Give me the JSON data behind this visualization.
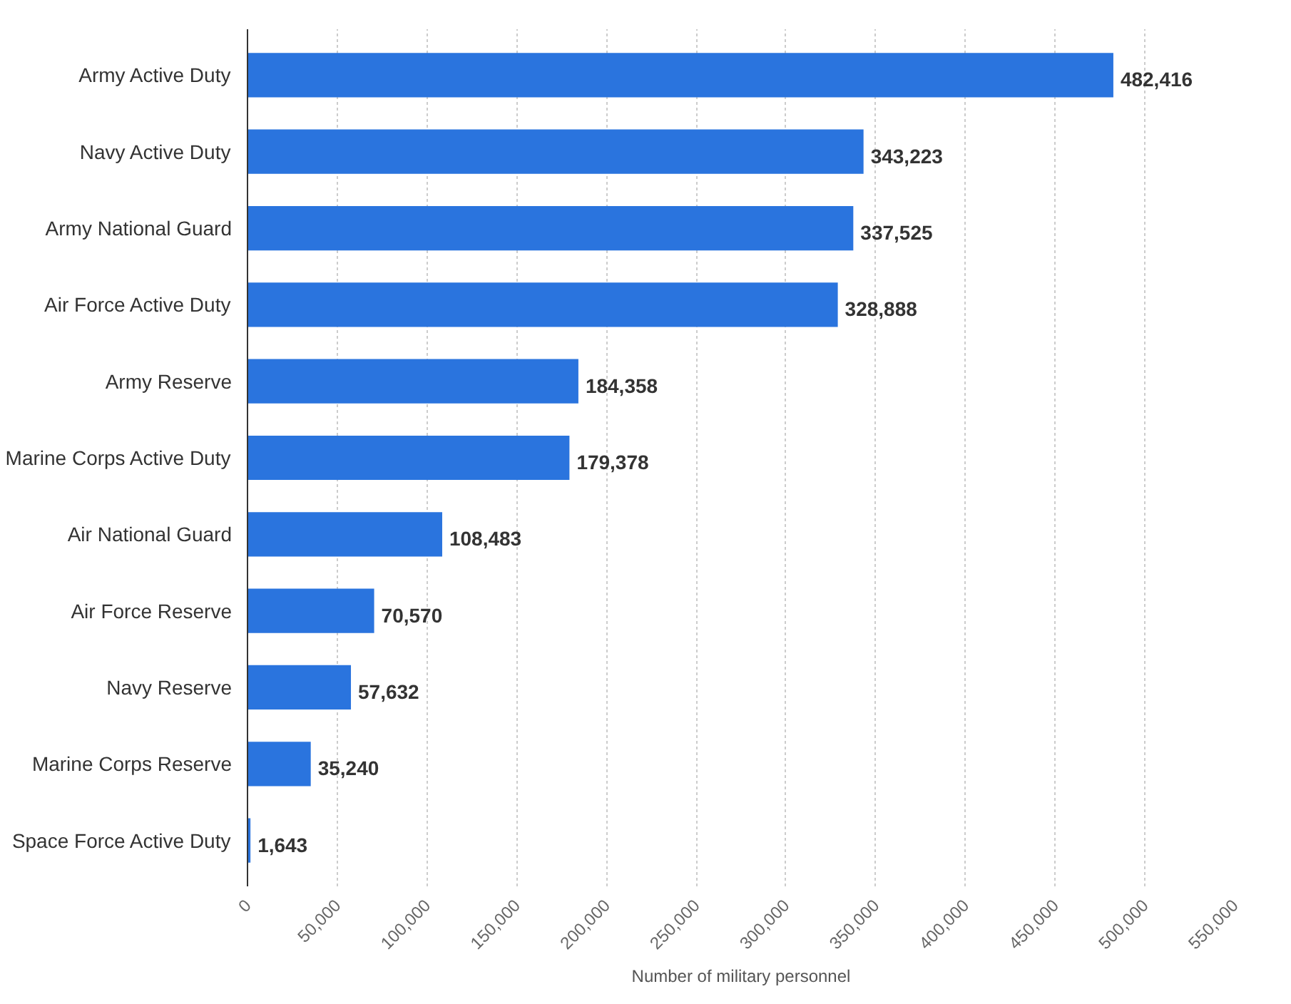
{
  "chart_data": {
    "type": "bar",
    "orientation": "horizontal",
    "xlabel": "Number of military personnel",
    "categories": [
      "Army Active Duty",
      "Navy Active Duty",
      "Army National Guard",
      "Air Force Active Duty",
      "Army Reserve",
      "Marine Corps Active Duty",
      "Air National Guard",
      "Air Force Reserve",
      "Navy Reserve",
      "Marine Corps Reserve",
      "Space Force Active Duty"
    ],
    "values": [
      482416,
      343223,
      337525,
      328888,
      184358,
      179378,
      108483,
      70570,
      57632,
      35240,
      1643
    ],
    "value_labels": [
      "482,416",
      "343,223",
      "337,525",
      "328,888",
      "184,358",
      "179,378",
      "108,483",
      "70,570",
      "57,632",
      "35,240",
      "1,643"
    ],
    "color": "#2a74de",
    "grid": "x",
    "xlim": [
      0,
      550000
    ],
    "xticks": [
      0,
      {
        "value": 50000,
        "label": "50,000"
      },
      {
        "value": 100000,
        "label": "100,000"
      },
      {
        "value": 150000,
        "label": "150,000"
      },
      {
        "value": 200000,
        "label": "200,000"
      },
      {
        "value": 250000,
        "label": "250,000"
      },
      {
        "value": 300000,
        "label": "300,000"
      },
      {
        "value": 350000,
        "label": "350,000"
      },
      {
        "value": 400000,
        "label": "400,000"
      },
      {
        "value": 450000,
        "label": "450,000"
      },
      {
        "value": 500000,
        "label": "500,000"
      },
      {
        "value": 550000,
        "label": "550,000"
      }
    ]
  }
}
